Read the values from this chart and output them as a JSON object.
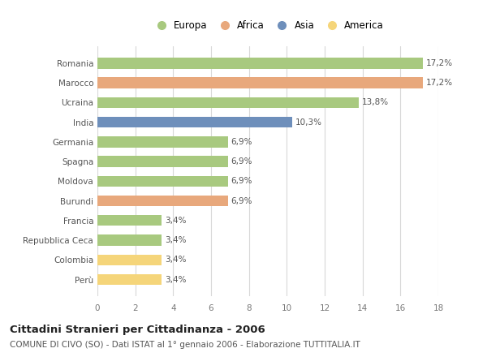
{
  "categories": [
    "Romania",
    "Marocco",
    "Ucraina",
    "India",
    "Germania",
    "Spagna",
    "Moldova",
    "Burundi",
    "Francia",
    "Repubblica Ceca",
    "Colombia",
    "Perù"
  ],
  "values": [
    17.2,
    17.2,
    13.8,
    10.3,
    6.9,
    6.9,
    6.9,
    6.9,
    3.4,
    3.4,
    3.4,
    3.4
  ],
  "labels": [
    "17,2%",
    "17,2%",
    "13,8%",
    "10,3%",
    "6,9%",
    "6,9%",
    "6,9%",
    "6,9%",
    "3,4%",
    "3,4%",
    "3,4%",
    "3,4%"
  ],
  "continents": [
    "Europa",
    "Africa",
    "Europa",
    "Asia",
    "Europa",
    "Europa",
    "Europa",
    "Africa",
    "Europa",
    "Europa",
    "America",
    "America"
  ],
  "colors": {
    "Europa": "#a8c97f",
    "Africa": "#e8a87c",
    "Asia": "#6e8fbb",
    "America": "#f5d57a"
  },
  "xlim": [
    0,
    18
  ],
  "xticks": [
    0,
    2,
    4,
    6,
    8,
    10,
    12,
    14,
    16,
    18
  ],
  "title": "Cittadini Stranieri per Cittadinanza - 2006",
  "subtitle": "COMUNE DI CIVO (SO) - Dati ISTAT al 1° gennaio 2006 - Elaborazione TUTTITALIA.IT",
  "title_fontsize": 9.5,
  "subtitle_fontsize": 7.5,
  "bg_color": "#ffffff",
  "grid_color": "#d8d8d8",
  "bar_height": 0.55,
  "legend_entries": [
    "Europa",
    "Africa",
    "Asia",
    "America"
  ]
}
